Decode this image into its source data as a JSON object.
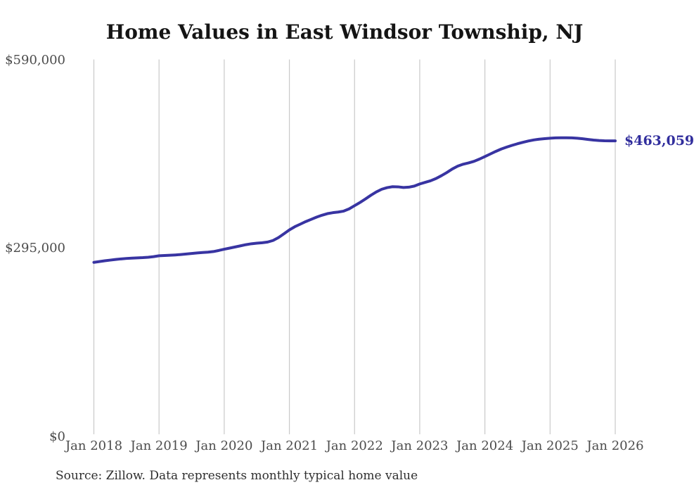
{
  "title": "Home Values in East Windsor Township, NJ",
  "source_note": "Source: Zillow. Data represents monthly typical home value",
  "end_label": "$463,059",
  "colors": {
    "line": "#3834a2",
    "annotation": "#312e9d",
    "grid": "#c9c9c9",
    "axis_text": "#4c4c4c",
    "title_text": "#141414",
    "background": "#ffffff"
  },
  "chart_data": {
    "type": "line",
    "title": "Home Values in East Windsor Township, NJ",
    "xlabel": "",
    "ylabel": "",
    "x_unit": "month",
    "x_start": "Jan 2018",
    "x_end": "Jan 2026",
    "xtick_labels": [
      "Jan 2018",
      "Jan 2019",
      "Jan 2020",
      "Jan 2021",
      "Jan 2022",
      "Jan 2023",
      "Jan 2024",
      "Jan 2025",
      "Jan 2026"
    ],
    "ytick_labels": [
      "$0",
      "$295,000",
      "$590,000"
    ],
    "ytick_values": [
      0,
      295000,
      590000
    ],
    "ylim": [
      0,
      590000
    ],
    "grid": "vertical-only",
    "legend": "none",
    "final_value": 463059,
    "series": [
      {
        "name": "Typical home value (USD)",
        "values": [
          272700,
          273900,
          275100,
          276200,
          277200,
          278100,
          278800,
          279300,
          279700,
          280100,
          280700,
          281600,
          283000,
          283400,
          283800,
          284300,
          285000,
          285800,
          286600,
          287400,
          288100,
          288700,
          289600,
          291300,
          293300,
          295000,
          296800,
          298600,
          300400,
          301800,
          302700,
          303400,
          304500,
          307000,
          311500,
          317500,
          323500,
          328500,
          332500,
          336500,
          340000,
          343500,
          346500,
          349000,
          350500,
          351500,
          353000,
          356500,
          361500,
          366500,
          372000,
          377800,
          383000,
          387200,
          389800,
          391200,
          391000,
          390000,
          390500,
          392200,
          395500,
          398000,
          400500,
          404000,
          408500,
          413500,
          419000,
          423500,
          426500,
          428500,
          431000,
          434500,
          438500,
          442500,
          446500,
          450200,
          453200,
          456000,
          458500,
          460800,
          462800,
          464500,
          465700,
          466500,
          467200,
          467700,
          467900,
          467900,
          467700,
          467200,
          466300,
          465300,
          464300,
          463600,
          463200,
          463000,
          463059
        ]
      }
    ]
  }
}
